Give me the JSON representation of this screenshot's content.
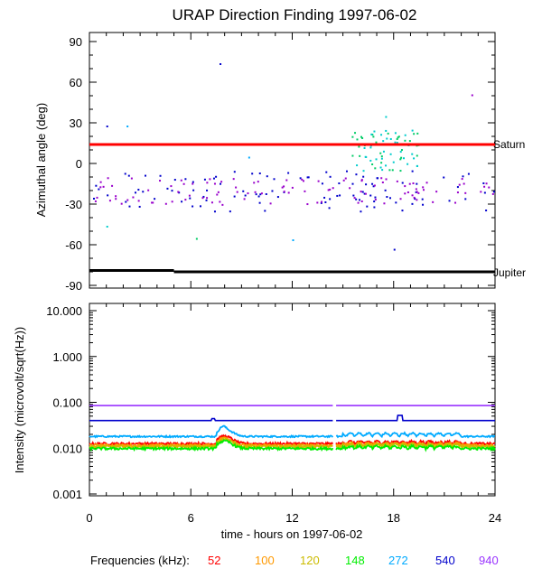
{
  "chart_data": [
    {
      "type": "scatter",
      "title": "URAP Direction Finding  1997-06-02",
      "xlabel": "",
      "ylabel": "Azimuthal angle (deg)",
      "xlim": [
        0,
        24
      ],
      "ylim": [
        -90,
        90
      ],
      "yticks": [
        90,
        60,
        30,
        0,
        -30,
        -60,
        -90
      ],
      "reference_lines": [
        {
          "name": "Saturn",
          "y": 14,
          "color": "#ff0000"
        },
        {
          "name": "Jupiter",
          "segments": [
            {
              "x": [
                0,
                5
              ],
              "y": -79
            },
            {
              "x": [
                5,
                24
              ],
              "y": -80
            }
          ],
          "color": "#000000"
        }
      ],
      "series": [
        {
          "name": "blue cluster",
          "color": "#0000cc",
          "x_range": [
            0,
            24
          ],
          "y_range": [
            -35,
            -5
          ]
        },
        {
          "name": "purple cluster",
          "color": "#9900cc",
          "x_range": [
            0,
            24
          ],
          "y_range": [
            -30,
            -10
          ]
        },
        {
          "name": "cyan/green cluster",
          "color": "#00cc66",
          "x_range": [
            15.5,
            19.5
          ],
          "y_range": [
            -5,
            25
          ]
        },
        {
          "name": "outliers",
          "points": [
            [
              1,
              28
            ],
            [
              1,
              -46
            ],
            [
              2.2,
              28
            ],
            [
              6.3,
              -55
            ],
            [
              7.7,
              74
            ],
            [
              9.4,
              5
            ],
            [
              12,
              -56
            ],
            [
              17.5,
              35
            ],
            [
              18,
              -63
            ],
            [
              22.6,
              51
            ]
          ]
        }
      ]
    },
    {
      "type": "line",
      "title": "",
      "xlabel": "time - hours on 1997-06-02",
      "ylabel": "Intensity (microvolt/sqrt(Hz))",
      "xlim": [
        0,
        24
      ],
      "ylim": [
        0.001,
        10
      ],
      "yscale": "log",
      "xticks": [
        0,
        6,
        12,
        18,
        24
      ],
      "yticks": [
        "10.000",
        "1.000",
        "0.100",
        "0.010",
        "0.001"
      ],
      "data_gap_hours": [
        14.4,
        14.6
      ],
      "series": [
        {
          "name": "52",
          "color": "#ff0000",
          "baseline": 0.0125
        },
        {
          "name": "100",
          "color": "#ff9900",
          "baseline": 0.0115
        },
        {
          "name": "120",
          "color": "#ccbb00",
          "baseline": 0.0108
        },
        {
          "name": "148",
          "color": "#00ee00",
          "baseline": 0.0098
        },
        {
          "name": "272",
          "color": "#00aaff",
          "baseline": 0.018
        },
        {
          "name": "540",
          "color": "#0000cc",
          "baseline": 0.04
        },
        {
          "name": "940",
          "color": "#9933ff",
          "baseline": 0.085
        }
      ]
    }
  ],
  "legend": {
    "label": "Frequencies (kHz):",
    "items": [
      {
        "value": "52",
        "color": "#ff0000"
      },
      {
        "value": "100",
        "color": "#ff9900"
      },
      {
        "value": "120",
        "color": "#ccbb00"
      },
      {
        "value": "148",
        "color": "#00ee00"
      },
      {
        "value": "272",
        "color": "#00aaff"
      },
      {
        "value": "540",
        "color": "#0000cc"
      },
      {
        "value": "940",
        "color": "#9933ff"
      }
    ]
  }
}
